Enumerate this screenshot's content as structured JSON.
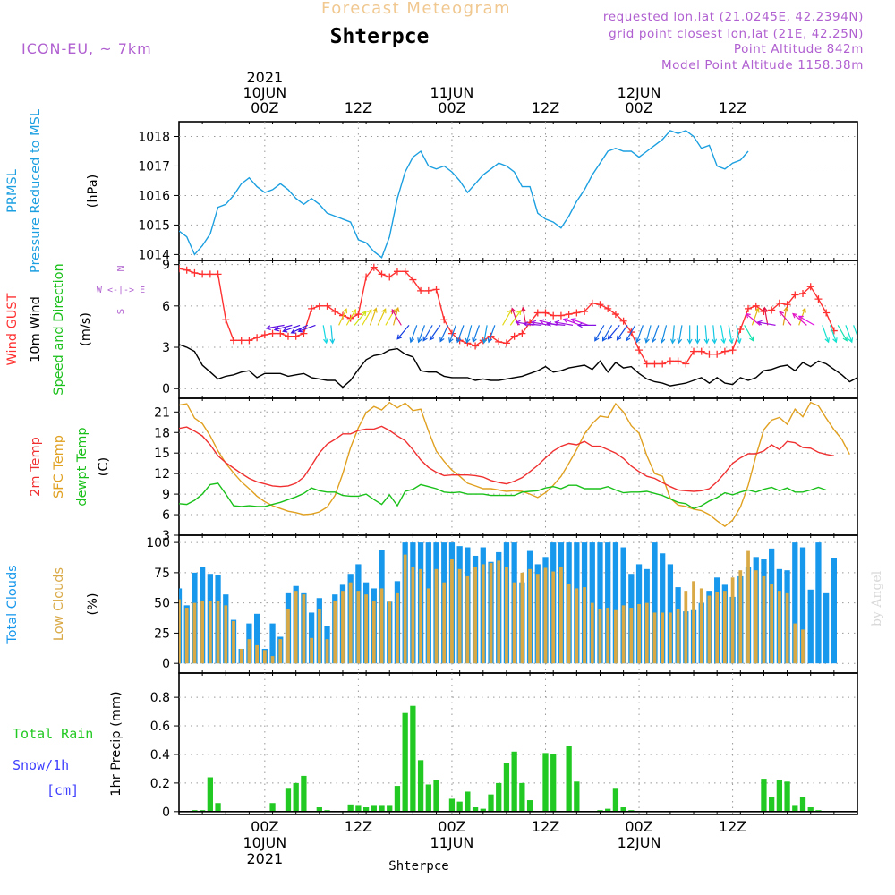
{
  "header": {
    "product_title": "Forecast Meteogram",
    "location": "Shterpce",
    "model": "ICON-EU, ~ 7km",
    "requested": "requested lon,lat (21.0245E, 42.2394N)",
    "gridpoint": "grid point closest lon,lat (21E, 42.25N)",
    "point_alt": "Point Altitude 842m",
    "model_alt": "Model Point Altitude 1158.38m",
    "credit": "by Angel",
    "bottom_name": "Shterpce"
  },
  "colors": {
    "pressure": "#1b9fe0",
    "gust": "#ff3030",
    "wind": "#000000",
    "temp2m": "#f03030",
    "sfc": "#e0a020",
    "dewpt": "#19c019",
    "total_clouds": "#1898ec",
    "low_clouds": "#d9a946",
    "rain": "#22c922",
    "snow": "#4040ff",
    "model_text": "#b060d0",
    "title_faded": "#f0c890"
  },
  "time_axis": {
    "top_labels": [
      {
        "h": 0,
        "lines": [
          "2021",
          "10JUN",
          "00Z"
        ]
      },
      {
        "h": 12,
        "lines": [
          "12Z"
        ]
      },
      {
        "h": 24,
        "lines": [
          "11JUN",
          "00Z"
        ]
      },
      {
        "h": 36,
        "lines": [
          "12Z"
        ]
      },
      {
        "h": 48,
        "lines": [
          "12JUN",
          "00Z"
        ]
      },
      {
        "h": 60,
        "lines": [
          "12Z"
        ]
      }
    ],
    "bottom_labels": [
      {
        "h": 0,
        "lines": [
          "00Z",
          "10JUN",
          "2021"
        ]
      },
      {
        "h": 12,
        "lines": [
          "12Z"
        ]
      },
      {
        "h": 24,
        "lines": [
          "00Z",
          "11JUN"
        ]
      },
      {
        "h": 36,
        "lines": [
          "12Z"
        ]
      },
      {
        "h": 48,
        "lines": [
          "00Z",
          "12JUN"
        ]
      },
      {
        "h": 60,
        "lines": [
          "12Z"
        ]
      }
    ]
  },
  "chart_data": [
    {
      "type": "line",
      "panel": "pressure",
      "label_lines": [
        {
          "text": "PRMSL",
          "color": "pressure"
        },
        {
          "text": "Pressure Reduced to MSL",
          "color": "pressure"
        }
      ],
      "unit": "(hPa)",
      "x_start": -11,
      "x_step": 1,
      "ylim": [
        1013.8,
        1018.5
      ],
      "yticks": [
        1014,
        1015,
        1016,
        1017,
        1018
      ],
      "series": [
        {
          "name": "PRMSL",
          "color": "pressure",
          "values": [
            1014.8,
            1014.6,
            1014.0,
            1014.3,
            1014.7,
            1015.6,
            1015.7,
            1016.0,
            1016.4,
            1016.6,
            1016.3,
            1016.1,
            1016.2,
            1016.4,
            1016.2,
            1015.9,
            1015.7,
            1015.9,
            1015.7,
            1015.4,
            1015.3,
            1015.2,
            1015.1,
            1014.5,
            1014.4,
            1014.1,
            1013.9,
            1014.6,
            1015.9,
            1016.8,
            1017.3,
            1017.5,
            1017.0,
            1016.9,
            1017.0,
            1016.8,
            1016.5,
            1016.1,
            1016.4,
            1016.7,
            1016.9,
            1017.1,
            1017.0,
            1016.8,
            1016.3,
            1016.3,
            1015.4,
            1015.2,
            1015.1,
            1014.9,
            1015.3,
            1015.8,
            1016.2,
            1016.7,
            1017.1,
            1017.5,
            1017.6,
            1017.5,
            1017.5,
            1017.3,
            1017.5,
            1017.7,
            1017.9,
            1018.2,
            1018.1,
            1018.2,
            1018.0,
            1017.6,
            1017.7,
            1017.0,
            1016.9,
            1017.1,
            1017.2,
            1017.5
          ]
        }
      ]
    },
    {
      "type": "line",
      "panel": "wind",
      "label_lines": [
        {
          "text": "Wind GUST",
          "color": "gust"
        },
        {
          "text": "10m Wind",
          "color": "wind"
        },
        {
          "text": "Speed and Direction",
          "color": "dewpt"
        }
      ],
      "unit": "(m/s)",
      "compass": [
        "N",
        "W <-|-> E",
        "S"
      ],
      "x_start": -11,
      "x_step": 1,
      "ylim": [
        -0.7,
        9.3
      ],
      "yticks": [
        0,
        3,
        6,
        9
      ],
      "series": [
        {
          "name": "Wind GUST",
          "color": "gust",
          "marker": "plus",
          "values": [
            8.7,
            8.6,
            8.4,
            8.3,
            8.3,
            8.3,
            5.0,
            3.5,
            3.5,
            3.5,
            3.7,
            3.9,
            4.0,
            4.0,
            3.8,
            3.8,
            4.0,
            5.8,
            6.0,
            6.0,
            5.6,
            5.3,
            5.1,
            5.4,
            8.1,
            8.8,
            8.3,
            8.1,
            8.5,
            8.5,
            7.9,
            7.1,
            7.1,
            7.2,
            5.0,
            4.0,
            3.5,
            3.3,
            3.1,
            3.5,
            3.8,
            3.4,
            3.3,
            3.8,
            4.0,
            4.8,
            5.5,
            5.5,
            5.3,
            5.3,
            5.4,
            5.5,
            5.6,
            6.2,
            6.1,
            5.8,
            5.4,
            4.9,
            4.1,
            2.8,
            1.8,
            1.8,
            1.8,
            2.0,
            2.0,
            1.8,
            2.7,
            2.7,
            2.5,
            2.5,
            2.7,
            2.8,
            4.3,
            5.8,
            6.0,
            5.6,
            5.7,
            6.2,
            6.1,
            6.8,
            6.9,
            7.4,
            6.5,
            5.5,
            4.2
          ]
        },
        {
          "name": "10m Wind",
          "color": "wind",
          "values": [
            3.2,
            3.0,
            2.7,
            1.7,
            1.2,
            0.7,
            0.9,
            1.0,
            1.2,
            1.3,
            0.8,
            1.1,
            1.1,
            1.1,
            0.9,
            1.0,
            1.1,
            0.8,
            0.7,
            0.6,
            0.6,
            0.1,
            0.6,
            1.4,
            2.1,
            2.4,
            2.5,
            2.8,
            2.9,
            2.5,
            2.3,
            1.3,
            1.2,
            1.2,
            0.9,
            0.8,
            0.8,
            0.8,
            0.6,
            0.7,
            0.6,
            0.6,
            0.7,
            0.8,
            0.9,
            1.1,
            1.3,
            1.6,
            1.2,
            1.3,
            1.5,
            1.6,
            1.7,
            1.4,
            2.0,
            1.2,
            1.9,
            1.5,
            1.6,
            1.1,
            0.7,
            0.5,
            0.4,
            0.2,
            0.3,
            0.4,
            0.6,
            0.8,
            0.4,
            0.8,
            0.4,
            0.3,
            0.8,
            0.6,
            0.8,
            1.3,
            1.4,
            1.6,
            1.7,
            1.3,
            1.9,
            1.6,
            2.0,
            1.8,
            1.4,
            1.0,
            0.5,
            0.8
          ]
        }
      ],
      "arrows": {
        "x_start": 2.5,
        "x_step": 1,
        "y": 4.6,
        "dirs": [
          260,
          255,
          250,
          245,
          250,
          170,
          175,
          25,
          30,
          40,
          30,
          20,
          25,
          30,
          15,
          330,
          220,
          200,
          200,
          210,
          215,
          205,
          200,
          200,
          195,
          200,
          190,
          200,
          30,
          35,
          340,
          350,
          280,
          275,
          280,
          285,
          275,
          280,
          290,
          290,
          270,
          210,
          210,
          220,
          215,
          210,
          200,
          195,
          200,
          195,
          185,
          190,
          180,
          180,
          175,
          175,
          170,
          170,
          170,
          150,
          20,
          310,
          350,
          280,
          10,
          320,
          20,
          310,
          300,
          160,
          160,
          150,
          160,
          160,
          155,
          150,
          160,
          160,
          200,
          20
        ]
      }
    },
    {
      "type": "line",
      "panel": "temperature",
      "label_lines": [
        {
          "text": "2m Temp",
          "color": "temp2m"
        },
        {
          "text": "SFC Temp",
          "color": "sfc"
        },
        {
          "text": "dewpt Temp",
          "color": "dewpt"
        }
      ],
      "unit": "(C)",
      "x_start": -11,
      "x_step": 1,
      "ylim": [
        3,
        23
      ],
      "yticks": [
        3,
        6,
        9,
        12,
        15,
        18,
        21
      ],
      "series": [
        {
          "name": "SFC Temp",
          "color": "sfc",
          "values": [
            22.0,
            22.2,
            20.1,
            19.3,
            17.5,
            15.3,
            13.5,
            12.1,
            10.8,
            9.8,
            8.7,
            7.9,
            7.3,
            6.9,
            6.5,
            6.3,
            6.0,
            6.1,
            6.4,
            7.1,
            8.8,
            12.0,
            15.8,
            18.7,
            20.9,
            21.8,
            21.3,
            22.4,
            21.6,
            22.3,
            21.2,
            21.4,
            18.2,
            15.3,
            13.8,
            12.5,
            11.6,
            10.6,
            10.2,
            9.8,
            9.8,
            9.6,
            9.4,
            9.5,
            9.4,
            9.0,
            8.5,
            9.2,
            10.3,
            11.6,
            13.5,
            15.5,
            17.8,
            19.3,
            20.4,
            20.2,
            22.2,
            21.0,
            19.0,
            17.9,
            14.6,
            12.0,
            11.6,
            8.4,
            7.4,
            7.2,
            6.8,
            6.6,
            6.0,
            5.1,
            4.3,
            5.2,
            7.1,
            10.3,
            14.6,
            18.4,
            19.8,
            20.2,
            19.2,
            21.4,
            20.3,
            22.4,
            21.9,
            20.1,
            18.4,
            17.0,
            14.8
          ]
        },
        {
          "name": "2m Temp",
          "color": "temp2m",
          "values": [
            18.6,
            18.8,
            18.2,
            17.5,
            16.2,
            14.6,
            13.6,
            12.8,
            12.0,
            11.3,
            10.8,
            10.5,
            10.2,
            10.1,
            10.2,
            10.6,
            11.5,
            13.2,
            15.0,
            16.3,
            17.0,
            17.8,
            17.8,
            18.3,
            18.5,
            18.5,
            18.9,
            18.3,
            17.5,
            16.8,
            15.5,
            14.0,
            12.9,
            12.2,
            11.7,
            11.8,
            11.8,
            11.8,
            11.7,
            11.5,
            11.0,
            10.7,
            10.5,
            10.9,
            11.4,
            12.3,
            13.2,
            14.3,
            15.3,
            16.0,
            16.4,
            16.2,
            16.7,
            16.0,
            16.0,
            15.5,
            15.0,
            14.2,
            13.1,
            12.3,
            11.6,
            11.3,
            10.7,
            10.1,
            9.6,
            9.5,
            9.4,
            9.5,
            9.8,
            10.8,
            12.1,
            13.5,
            14.3,
            14.9,
            14.9,
            15.3,
            16.2,
            15.5,
            16.7,
            16.5,
            15.8,
            15.7,
            15.1,
            14.8,
            14.6
          ]
        },
        {
          "name": "dewpt Temp",
          "color": "dewpt",
          "values": [
            7.6,
            7.5,
            8.1,
            9.0,
            10.4,
            10.6,
            9.0,
            7.3,
            7.2,
            7.3,
            7.2,
            7.2,
            7.5,
            7.8,
            8.2,
            8.6,
            9.1,
            9.9,
            9.5,
            9.3,
            9.3,
            8.8,
            8.7,
            8.7,
            9.0,
            8.2,
            7.5,
            8.9,
            7.3,
            9.4,
            9.7,
            10.4,
            10.1,
            9.8,
            9.3,
            9.2,
            9.3,
            9.0,
            9.0,
            9.0,
            8.8,
            8.8,
            8.8,
            8.8,
            9.3,
            9.4,
            9.5,
            9.9,
            10.1,
            9.8,
            10.3,
            10.3,
            9.8,
            9.8,
            9.8,
            10.1,
            9.6,
            9.2,
            9.3,
            9.3,
            9.4,
            9.1,
            8.8,
            8.3,
            7.8,
            7.6,
            6.9,
            7.3,
            8.0,
            8.5,
            9.2,
            8.9,
            9.3,
            9.6,
            9.3,
            9.7,
            10.0,
            9.5,
            9.9,
            9.3,
            9.3,
            9.6,
            10.0,
            9.6
          ]
        }
      ]
    },
    {
      "type": "bar",
      "panel": "clouds",
      "label_lines": [
        {
          "text": "Total Clouds",
          "color": "total_clouds"
        },
        {
          "text": "Low Clouds",
          "color": "low_clouds"
        }
      ],
      "unit": "(%)",
      "x_start": -11,
      "x_step": 1,
      "ylim": [
        -8,
        106
      ],
      "yticks": [
        0,
        25,
        50,
        75,
        100
      ],
      "series": [
        {
          "name": "Total Clouds",
          "color": "total_clouds",
          "values": [
            62,
            48,
            75,
            80,
            74,
            73,
            57,
            36,
            12,
            33,
            41,
            12,
            33,
            22,
            58,
            64,
            58,
            42,
            54,
            31,
            57,
            65,
            74,
            82,
            67,
            62,
            94,
            51,
            68,
            100,
            100,
            100,
            100,
            100,
            100,
            100,
            97,
            96,
            89,
            96,
            84,
            92,
            100,
            100,
            67,
            93,
            82,
            88,
            100,
            100,
            100,
            100,
            100,
            100,
            100,
            100,
            100,
            96,
            74,
            82,
            78,
            100,
            91,
            82,
            63,
            43,
            44,
            50,
            60,
            71,
            65,
            55,
            72,
            80,
            88,
            86,
            95,
            78,
            77,
            100,
            96,
            61,
            100,
            58,
            87
          ]
        },
        {
          "name": "Low Clouds",
          "color": "low_clouds",
          "values": [
            53,
            46,
            50,
            52,
            52,
            52,
            48,
            35,
            12,
            20,
            15,
            11,
            6,
            20,
            45,
            60,
            57,
            21,
            45,
            20,
            52,
            60,
            67,
            60,
            57,
            52,
            62,
            51,
            58,
            90,
            80,
            78,
            62,
            78,
            67,
            86,
            78,
            72,
            80,
            82,
            83,
            85,
            80,
            67,
            75,
            78,
            74,
            79,
            76,
            80,
            66,
            62,
            63,
            50,
            45,
            46,
            44,
            48,
            46,
            49,
            50,
            42,
            42,
            42,
            45,
            60,
            68,
            62,
            56,
            59,
            60,
            71,
            77,
            93,
            77,
            72,
            66,
            60,
            58,
            33,
            28
          ]
        }
      ]
    },
    {
      "type": "bar",
      "panel": "precip",
      "label_lines": [
        {
          "text": "Total   Rain",
          "color": "rain"
        },
        {
          "text": "Snow/1h",
          "color": "snow"
        },
        {
          "text": "[cm]",
          "color": "snow"
        }
      ],
      "unit": "1hr Precip (mm)",
      "x_start": -11,
      "x_step": 1,
      "ylim": [
        -0.02,
        0.97
      ],
      "yticks": [
        0,
        0.2,
        0.4,
        0.6,
        0.8
      ],
      "series": [
        {
          "name": "Total Rain",
          "color": "rain",
          "values": [
            0,
            0,
            0.01,
            0.01,
            0.24,
            0.06,
            0,
            0,
            0,
            0,
            0,
            0,
            0.06,
            0,
            0.16,
            0.2,
            0.25,
            0,
            0.03,
            0.01,
            0,
            0,
            0.05,
            0.04,
            0.03,
            0.04,
            0.04,
            0.04,
            0.18,
            0.69,
            0.74,
            0.36,
            0.19,
            0.22,
            0,
            0.09,
            0.07,
            0.14,
            0.03,
            0.02,
            0.12,
            0.2,
            0.34,
            0.42,
            0.2,
            0.08,
            0,
            0.41,
            0.4,
            0,
            0.46,
            0.21,
            0,
            0,
            0.01,
            0.02,
            0.16,
            0.03,
            0.01,
            0,
            0,
            0,
            0,
            0,
            0,
            0,
            0,
            0,
            0,
            0,
            0,
            0,
            0,
            0,
            0,
            0.23,
            0.1,
            0.22,
            0.21,
            0.04,
            0.1,
            0.03,
            0.01
          ]
        }
      ]
    }
  ]
}
